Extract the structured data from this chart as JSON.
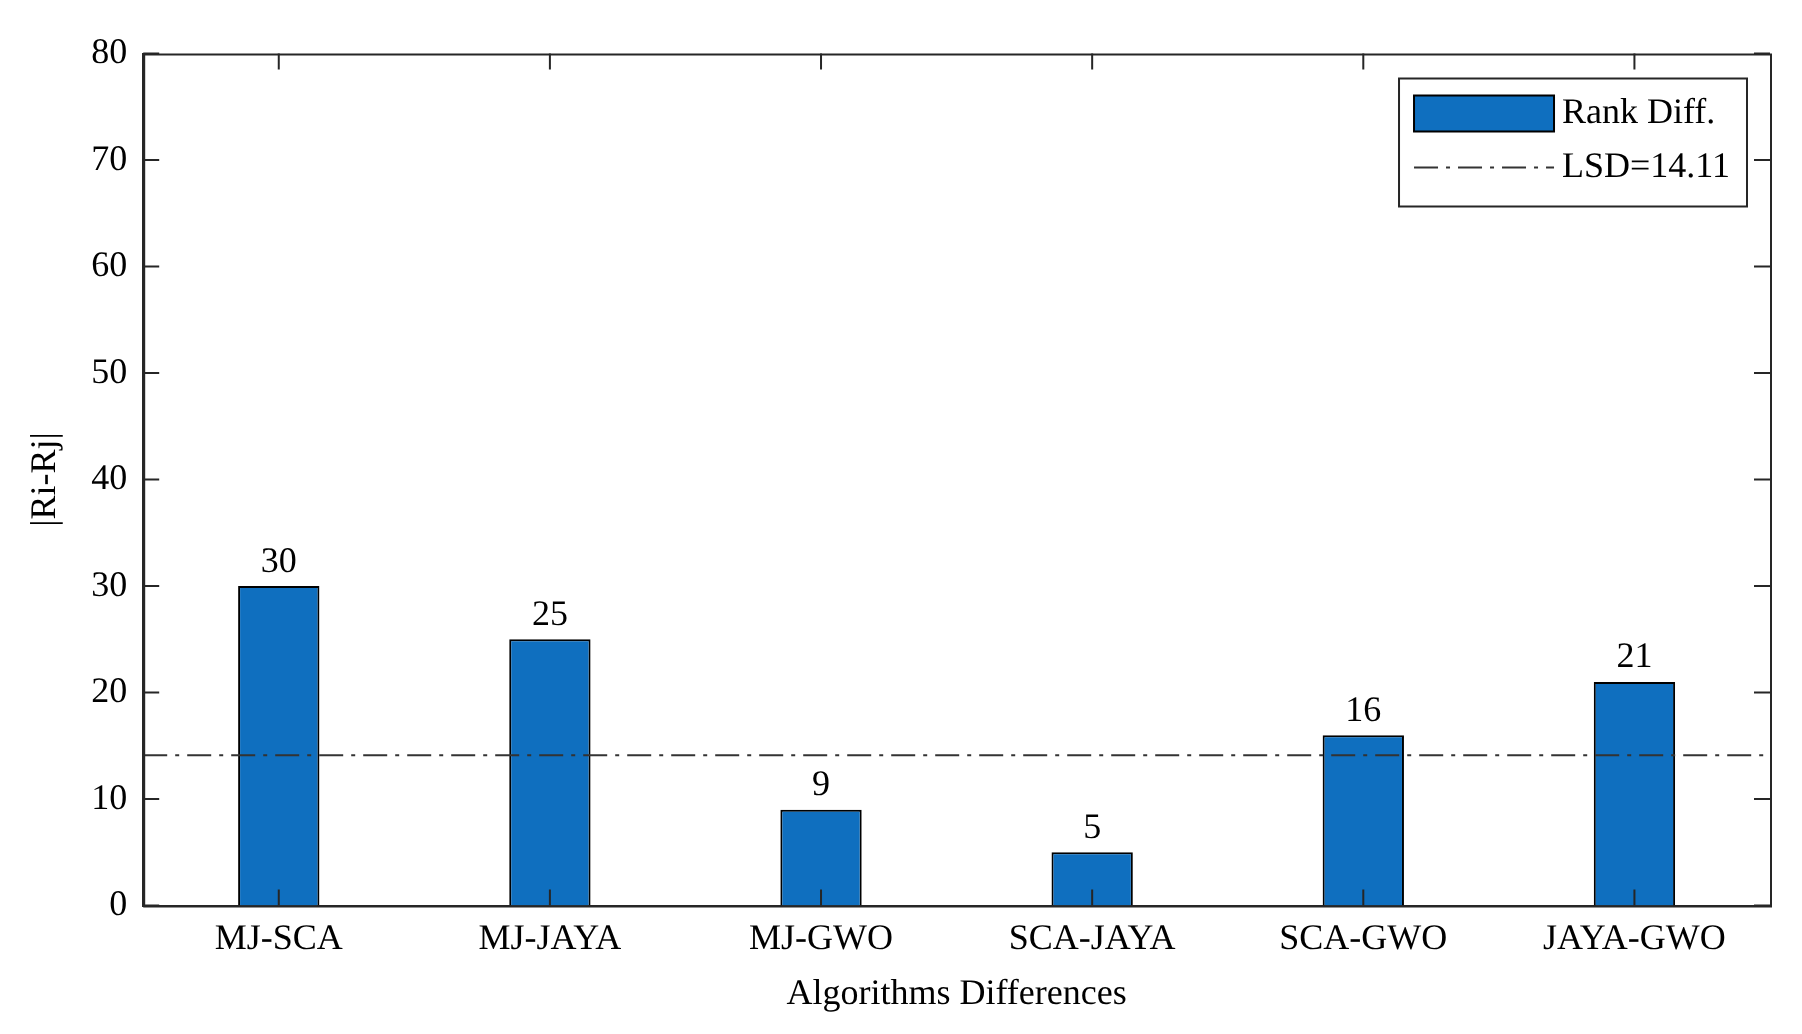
{
  "chart_data": {
    "type": "bar",
    "xlabel": "Algorithms Differences",
    "ylabel": "|Ri-Rj|",
    "categories": [
      "MJ-SCA",
      "MJ-JAYA",
      "MJ-GWO",
      "SCA-JAYA",
      "SCA-GWO",
      "JAYA-GWO"
    ],
    "series": [
      {
        "name": "Rank Diff.",
        "color": "#0f6fbf",
        "values": [
          30,
          25,
          9,
          5,
          16,
          21
        ]
      }
    ],
    "ylim": [
      0,
      80
    ],
    "yticks": [
      0,
      10,
      20,
      30,
      40,
      50,
      60,
      70,
      80
    ],
    "ref_lines": [
      {
        "axis": "y",
        "value": 14.11,
        "label": "LSD=14.11",
        "color": "#333333",
        "line_style": "dashdot"
      }
    ],
    "data_labels": true,
    "legend": "top right",
    "grid": false
  }
}
